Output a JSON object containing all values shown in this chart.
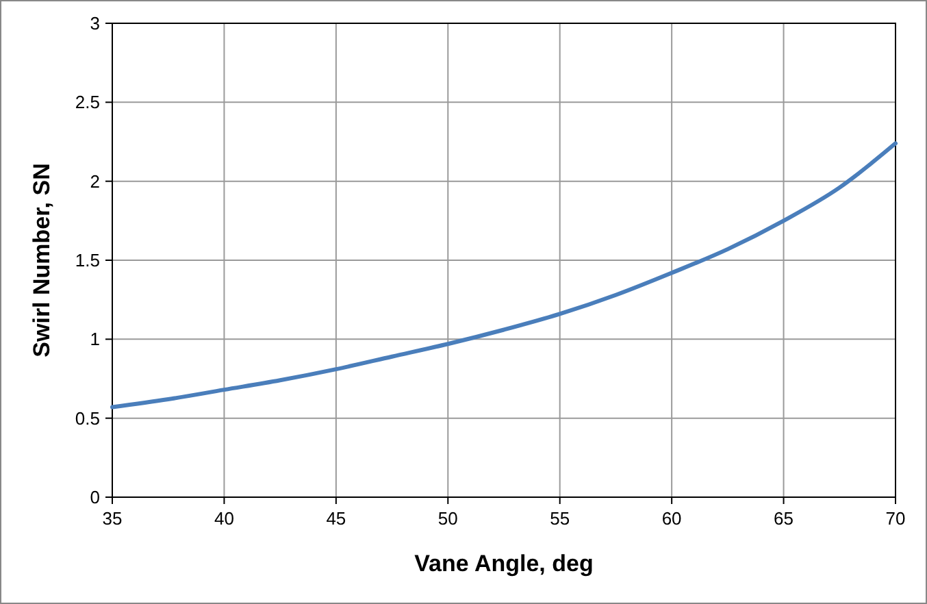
{
  "chart_data": {
    "type": "line",
    "xlabel": "Vane Angle, deg",
    "ylabel": "Swirl Number, SN",
    "x": [
      35,
      37.5,
      40,
      42.5,
      45,
      47.5,
      50,
      52.5,
      55,
      57.5,
      60,
      62.5,
      65,
      67.5,
      70
    ],
    "series": [
      {
        "color": "#4a7ebb",
        "values": [
          0.57,
          0.62,
          0.68,
          0.74,
          0.81,
          0.89,
          0.97,
          1.06,
          1.16,
          1.28,
          1.42,
          1.57,
          1.75,
          1.96,
          2.24
        ]
      }
    ],
    "xlim": [
      35,
      70
    ],
    "ylim": [
      0,
      3
    ],
    "xticks": [
      35,
      40,
      45,
      50,
      55,
      60,
      65,
      70
    ],
    "yticks": [
      0,
      0.5,
      1,
      1.5,
      2,
      2.5,
      3
    ],
    "grid": true,
    "marker": "none",
    "line_style": "solid"
  }
}
